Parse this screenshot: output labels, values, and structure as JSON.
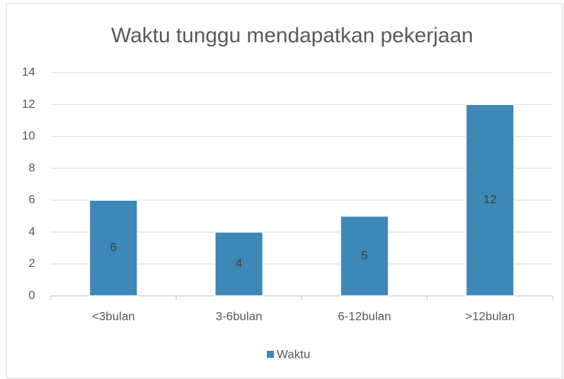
{
  "chart_data": {
    "type": "bar",
    "title": "Waktu tunggu mendapatkan pekerjaan",
    "categories": [
      "<3bulan",
      "3-6bulan",
      "6-12bulan",
      ">12bulan"
    ],
    "series": [
      {
        "name": "Waktu",
        "color": "#3d88b6",
        "values": [
          6,
          4,
          5,
          12
        ]
      }
    ],
    "ylim": [
      0,
      14
    ],
    "yticks": [
      0,
      2,
      4,
      6,
      8,
      10,
      12,
      14
    ],
    "grid": true,
    "legend": "bottom"
  }
}
